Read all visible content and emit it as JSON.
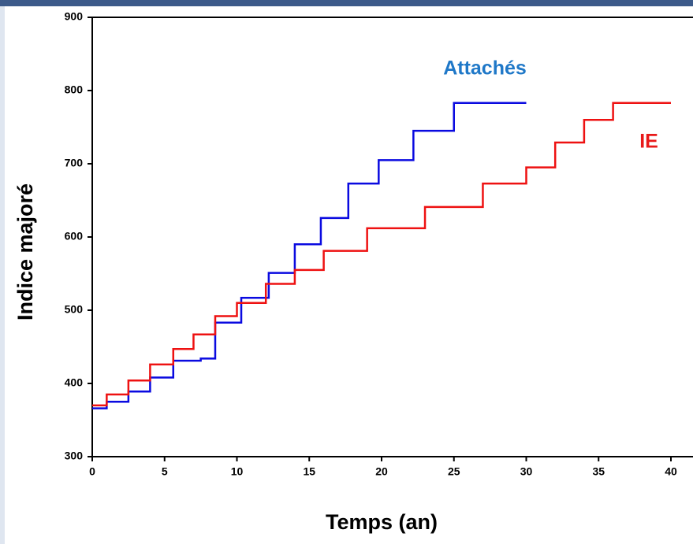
{
  "chart_data": {
    "type": "step",
    "x_label": "Temps (an)",
    "y_label": "Indice majoré",
    "xlim": [
      0,
      40
    ],
    "ylim": [
      300,
      900
    ],
    "xticks": [
      0,
      5,
      10,
      15,
      20,
      25,
      30,
      35,
      40
    ],
    "yticks": [
      300,
      400,
      500,
      600,
      700,
      800,
      900
    ],
    "series": [
      {
        "name": "Attachés",
        "color": "#0a0ae0",
        "label_color": "#1f78c8",
        "x": [
          0,
          1,
          2.5,
          4,
          5.6,
          7.5,
          8.5,
          10.3,
          12.2,
          14,
          15.8,
          17.7,
          19.8,
          22.2,
          25,
          30
        ],
        "values": [
          366,
          375,
          389,
          408,
          431,
          434,
          483,
          517,
          551,
          590,
          626,
          673,
          705,
          745,
          783,
          783
        ]
      },
      {
        "name": "IE",
        "color": "#ee1111",
        "label_color": "#e81919",
        "x": [
          0,
          1,
          2.5,
          4,
          5.6,
          7,
          8.5,
          10,
          12,
          14,
          16,
          19,
          23,
          27,
          30,
          32,
          34,
          36,
          40
        ],
        "values": [
          370,
          385,
          404,
          426,
          447,
          467,
          492,
          510,
          536,
          555,
          581,
          612,
          641,
          673,
          695,
          729,
          760,
          783,
          783
        ]
      }
    ]
  }
}
